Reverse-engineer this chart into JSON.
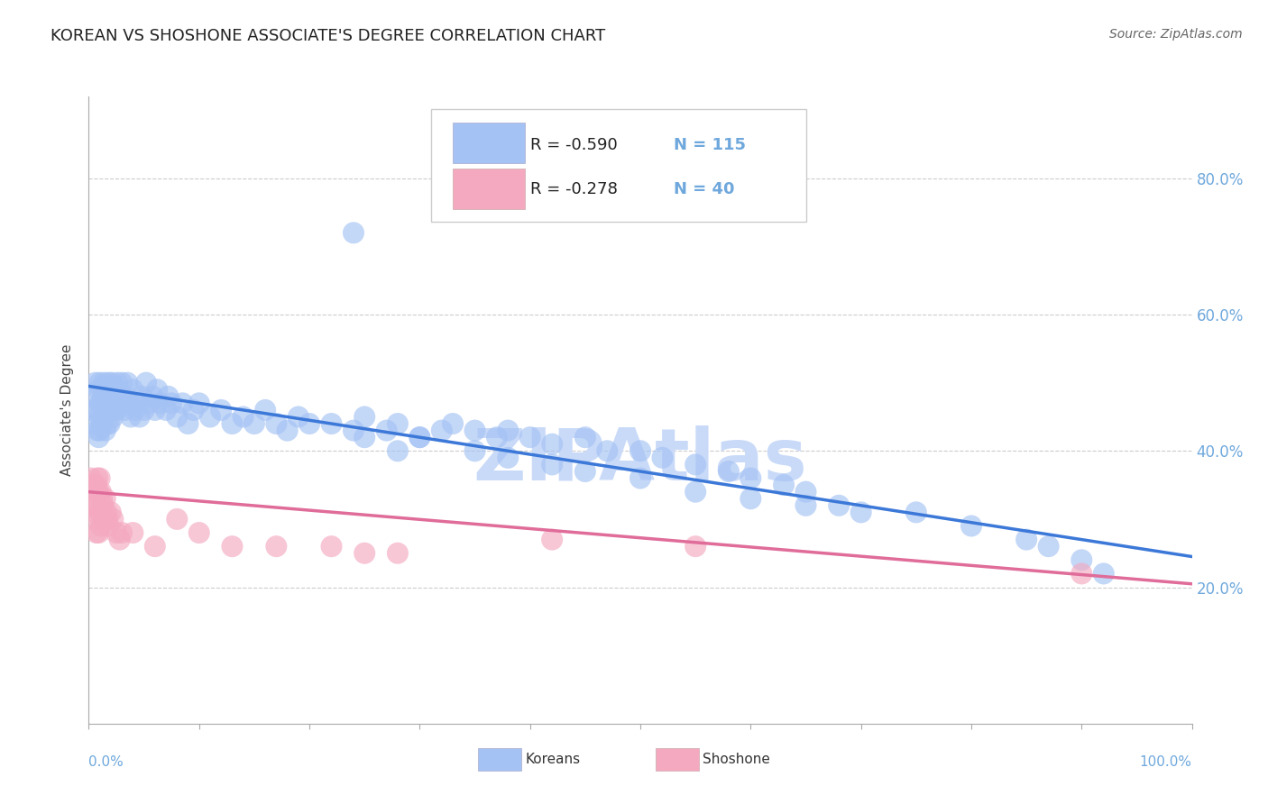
{
  "title": "KOREAN VS SHOSHONE ASSOCIATE'S DEGREE CORRELATION CHART",
  "source": "Source: ZipAtlas.com",
  "ylabel": "Associate's Degree",
  "watermark": "ZIPAtlas",
  "legend_korean_R": "-0.590",
  "legend_korean_N": "115",
  "legend_shoshone_R": "-0.278",
  "legend_shoshone_N": "40",
  "korean_color": "#a4c2f4",
  "shoshone_color": "#f4a9c0",
  "korean_line_color": "#3c78d8",
  "shoshone_line_color": "#e06c9a",
  "background_color": "#ffffff",
  "grid_color": "#cccccc",
  "axis_label_color": "#6fa8dc",
  "title_color": "#222222",
  "title_fontsize": 13,
  "ylabel_fontsize": 11,
  "legend_fontsize": 13,
  "watermark_color": "#c9daf8",
  "xlim": [
    0.0,
    1.0
  ],
  "ylim": [
    0.0,
    0.92
  ],
  "yticks": [
    0.2,
    0.4,
    0.6,
    0.8
  ],
  "ytick_labels": [
    "20.0%",
    "40.0%",
    "60.0%",
    "80.0%"
  ],
  "korean_x": [
    0.003,
    0.005,
    0.006,
    0.007,
    0.008,
    0.008,
    0.009,
    0.009,
    0.01,
    0.01,
    0.01,
    0.01,
    0.012,
    0.012,
    0.013,
    0.013,
    0.014,
    0.015,
    0.015,
    0.015,
    0.016,
    0.016,
    0.017,
    0.017,
    0.018,
    0.018,
    0.019,
    0.02,
    0.02,
    0.021,
    0.021,
    0.022,
    0.022,
    0.023,
    0.025,
    0.025,
    0.026,
    0.027,
    0.028,
    0.03,
    0.03,
    0.032,
    0.033,
    0.035,
    0.037,
    0.038,
    0.04,
    0.042,
    0.044,
    0.046,
    0.048,
    0.05,
    0.052,
    0.055,
    0.058,
    0.06,
    0.062,
    0.065,
    0.07,
    0.072,
    0.075,
    0.08,
    0.085,
    0.09,
    0.095,
    0.1,
    0.11,
    0.12,
    0.13,
    0.14,
    0.15,
    0.16,
    0.17,
    0.18,
    0.19,
    0.2,
    0.22,
    0.24,
    0.25,
    0.27,
    0.28,
    0.3,
    0.32,
    0.33,
    0.35,
    0.37,
    0.38,
    0.4,
    0.42,
    0.45,
    0.47,
    0.5,
    0.52,
    0.55,
    0.58,
    0.6,
    0.63,
    0.65,
    0.68,
    0.75,
    0.8,
    0.85,
    0.87,
    0.9,
    0.92,
    0.25,
    0.28,
    0.3,
    0.35,
    0.38,
    0.42,
    0.45,
    0.5,
    0.55,
    0.6,
    0.65,
    0.7
  ],
  "korean_y": [
    0.48,
    0.46,
    0.5,
    0.44,
    0.46,
    0.43,
    0.49,
    0.42,
    0.47,
    0.5,
    0.45,
    0.43,
    0.47,
    0.44,
    0.48,
    0.45,
    0.5,
    0.48,
    0.46,
    0.43,
    0.49,
    0.46,
    0.47,
    0.44,
    0.5,
    0.47,
    0.44,
    0.49,
    0.46,
    0.5,
    0.47,
    0.48,
    0.45,
    0.46,
    0.49,
    0.46,
    0.5,
    0.47,
    0.48,
    0.5,
    0.47,
    0.48,
    0.46,
    0.5,
    0.47,
    0.45,
    0.49,
    0.46,
    0.47,
    0.45,
    0.48,
    0.46,
    0.5,
    0.47,
    0.48,
    0.46,
    0.49,
    0.47,
    0.46,
    0.48,
    0.47,
    0.45,
    0.47,
    0.44,
    0.46,
    0.47,
    0.45,
    0.46,
    0.44,
    0.45,
    0.44,
    0.46,
    0.44,
    0.43,
    0.45,
    0.44,
    0.44,
    0.43,
    0.45,
    0.43,
    0.44,
    0.42,
    0.43,
    0.44,
    0.43,
    0.42,
    0.43,
    0.42,
    0.41,
    0.42,
    0.4,
    0.4,
    0.39,
    0.38,
    0.37,
    0.36,
    0.35,
    0.34,
    0.32,
    0.31,
    0.29,
    0.27,
    0.26,
    0.24,
    0.22,
    0.42,
    0.4,
    0.42,
    0.4,
    0.39,
    0.38,
    0.37,
    0.36,
    0.34,
    0.33,
    0.32,
    0.31
  ],
  "korean_outlier_x": [
    0.24
  ],
  "korean_outlier_y": [
    0.72
  ],
  "shoshone_x": [
    0.002,
    0.003,
    0.004,
    0.005,
    0.005,
    0.006,
    0.007,
    0.007,
    0.008,
    0.008,
    0.009,
    0.009,
    0.01,
    0.01,
    0.011,
    0.011,
    0.012,
    0.013,
    0.014,
    0.015,
    0.016,
    0.017,
    0.018,
    0.02,
    0.022,
    0.025,
    0.028,
    0.03,
    0.04,
    0.06,
    0.08,
    0.1,
    0.13,
    0.17,
    0.22,
    0.25,
    0.28,
    0.42,
    0.55,
    0.9
  ],
  "shoshone_y": [
    0.36,
    0.32,
    0.35,
    0.31,
    0.34,
    0.32,
    0.35,
    0.28,
    0.36,
    0.3,
    0.34,
    0.28,
    0.36,
    0.31,
    0.34,
    0.29,
    0.33,
    0.32,
    0.3,
    0.33,
    0.31,
    0.3,
    0.29,
    0.31,
    0.3,
    0.28,
    0.27,
    0.28,
    0.28,
    0.26,
    0.3,
    0.28,
    0.26,
    0.26,
    0.26,
    0.25,
    0.25,
    0.27,
    0.26,
    0.22
  ],
  "korean_line_y_start": 0.495,
  "korean_line_y_end": 0.245,
  "shoshone_line_y_start": 0.34,
  "shoshone_line_y_end": 0.205
}
